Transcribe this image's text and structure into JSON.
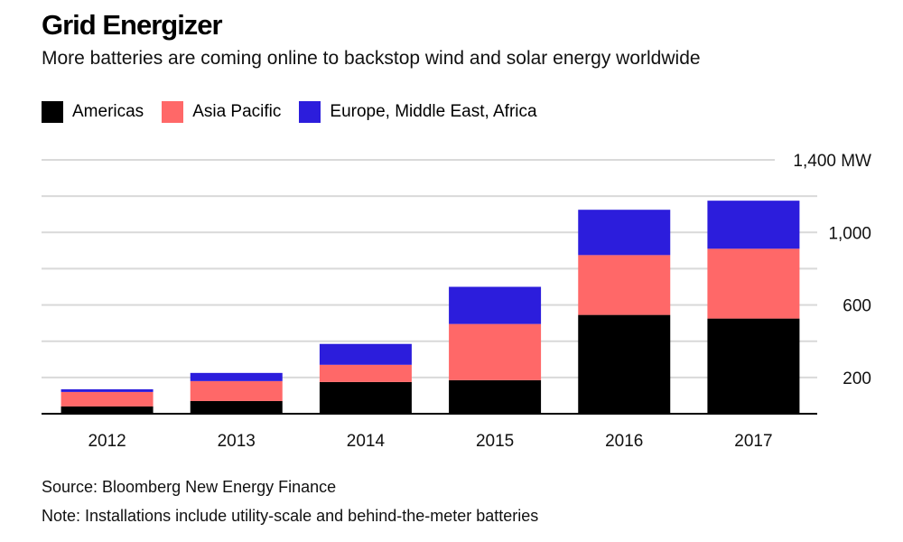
{
  "header": {
    "title": "Grid Energizer",
    "subtitle": "More batteries are coming online to backstop wind and solar energy worldwide"
  },
  "legend": [
    {
      "name": "Americas",
      "color": "#000000"
    },
    {
      "name": "Asia Pacific",
      "color": "#ff6868"
    },
    {
      "name": "Europe, Middle East, Africa",
      "color": "#2c1ddc"
    }
  ],
  "footer": {
    "source": "Source: Bloomberg New Energy Finance",
    "note": "Note: Installations include utility-scale and behind-the-meter batteries"
  },
  "chart_data": {
    "type": "bar",
    "stacked": true,
    "categories": [
      "2012",
      "2013",
      "2014",
      "2015",
      "2016",
      "2017"
    ],
    "series": [
      {
        "name": "Americas",
        "color": "#000000",
        "values": [
          40,
          70,
          175,
          185,
          545,
          525
        ]
      },
      {
        "name": "Asia Pacific",
        "color": "#ff6868",
        "values": [
          80,
          110,
          95,
          310,
          330,
          385
        ]
      },
      {
        "name": "Europe, Middle East, Africa",
        "color": "#2c1ddc",
        "values": [
          15,
          45,
          115,
          205,
          250,
          265
        ]
      }
    ],
    "y_ticks": [
      {
        "value": 200,
        "label": "200"
      },
      {
        "value": 600,
        "label": "600"
      },
      {
        "value": 1000,
        "label": "1,000"
      },
      {
        "value": 1400,
        "label": "1,400 MW"
      }
    ],
    "gridlines": [
      0,
      200,
      400,
      600,
      800,
      1000,
      1200,
      1400
    ],
    "ylim": [
      0,
      1400
    ],
    "ylabel": "",
    "xlabel": "",
    "grid": true,
    "legend_position": "top-left"
  }
}
